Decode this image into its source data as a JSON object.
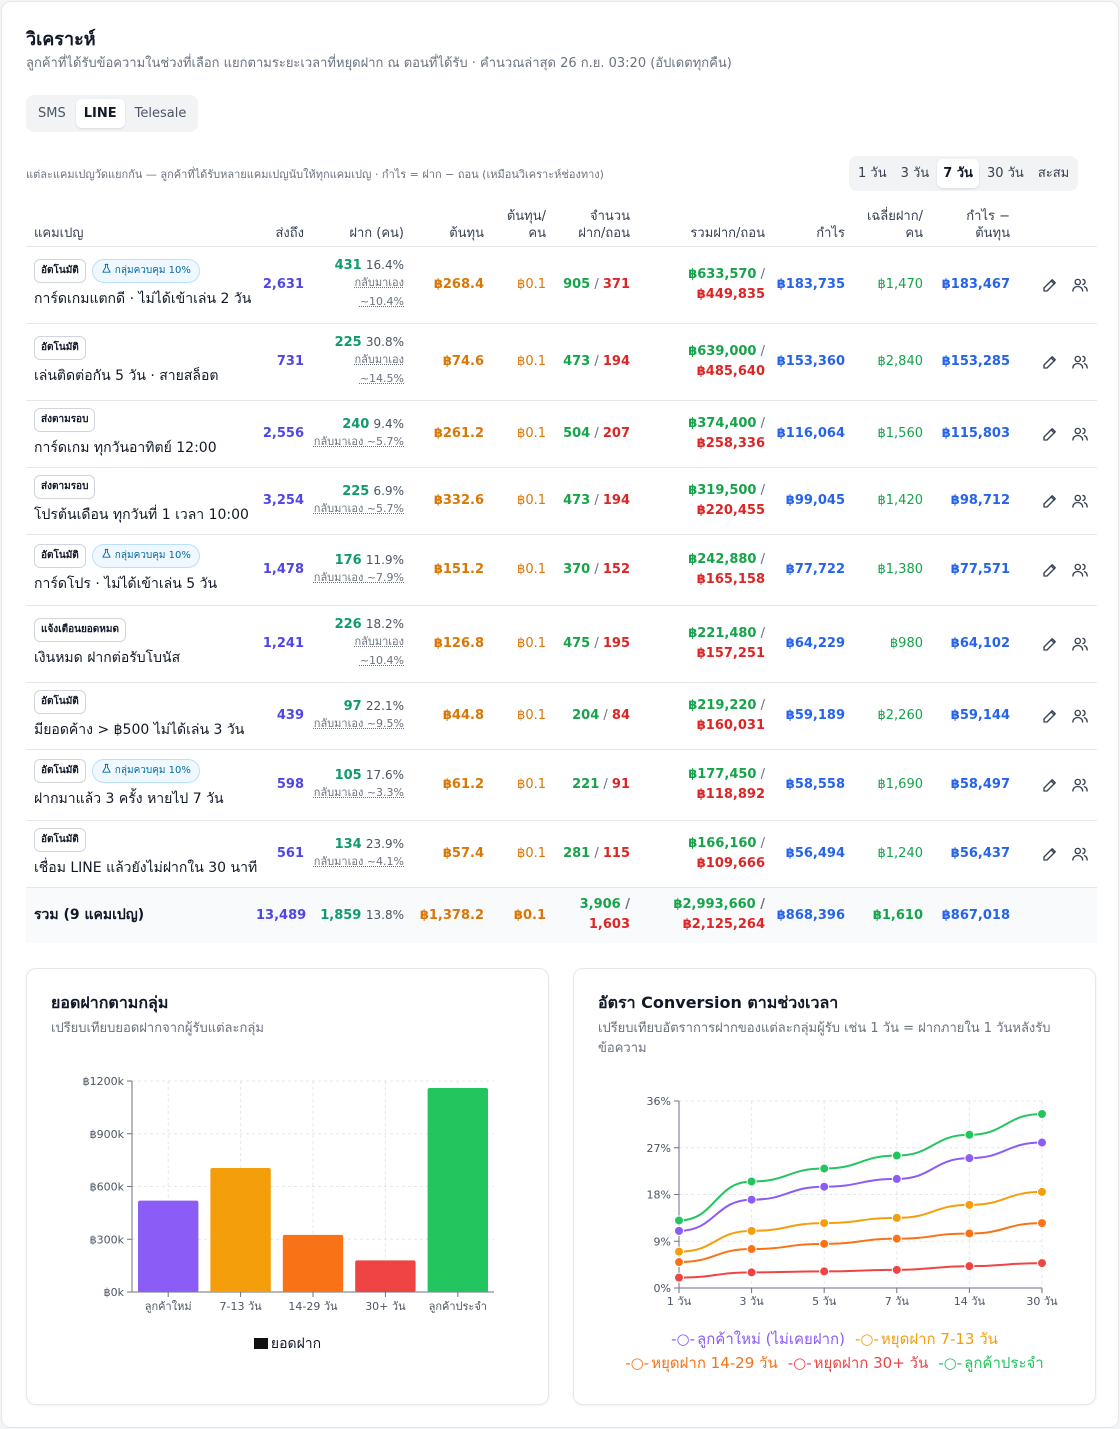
{
  "header": {
    "title": "วิเคราะห์",
    "subtitle": "ลูกค้าที่ได้รับข้อความในช่วงที่เลือก แยกตามระยะเวลาที่หยุดฝาก ณ ตอนที่ได้รับ · คำนวณล่าสุด 26 ก.ย. 03:20 (อัปเดตทุกคืน)"
  },
  "channel_tabs": [
    "SMS",
    "LINE",
    "Telesale"
  ],
  "channel_active": "LINE",
  "note": "แต่ละแคมเปญวัดแยกกัน — ลูกค้าที่ได้รับหลายแคมเปญนับให้ทุกแคมเปญ · กำไร = ฝาก − ถอน (เหมือนวิเคราะห์ช่องทาง)",
  "range_tabs": [
    "1 วัน",
    "3 วัน",
    "7 วัน",
    "30 วัน",
    "สะสม"
  ],
  "range_active": "7 วัน",
  "table": {
    "headers": {
      "campaign": "แคมเปญ",
      "reached": "ส่งถึง",
      "deposit": "ฝาก (คน)",
      "cost": "ต้นทุน",
      "cost_per_1": "ต้นทุน/",
      "cost_per_2": "คน",
      "count_1": "จำนวน",
      "count_2": "ฝาก/ถอน",
      "total": "รวมฝาก/ถอน",
      "profit": "กำไร",
      "avg_1": "เฉลี่ยฝาก/",
      "avg_2": "คน",
      "net_1": "กำไร −",
      "net_2": "ต้นทุน"
    },
    "rows": [
      {
        "badge": "อัตโนมัติ",
        "control": "กลุ่มควบคุม 10%",
        "name": "การ์ดเกมแตกดี · ไม่ได้เข้าเล่น 2 วัน",
        "reached": "2,631",
        "dep": "431",
        "pct": "16.4%",
        "returned": [
          "กลับมาเอง",
          "~10.4%"
        ],
        "cost": "฿268.4",
        "cpp": "฿0.1",
        "cnt_dep": "905",
        "cnt_wd": "371",
        "sum_dep": "฿633,570",
        "sum_wd": "฿449,835",
        "profit": "฿183,735",
        "avg": "฿1,470",
        "net": "฿183,467"
      },
      {
        "badge": "อัตโนมัติ",
        "control": "",
        "name": "เล่นติดต่อกัน 5 วัน · สายสล็อต",
        "reached": "731",
        "dep": "225",
        "pct": "30.8%",
        "returned": [
          "กลับมาเอง",
          "~14.5%"
        ],
        "cost": "฿74.6",
        "cpp": "฿0.1",
        "cnt_dep": "473",
        "cnt_wd": "194",
        "sum_dep": "฿639,000",
        "sum_wd": "฿485,640",
        "profit": "฿153,360",
        "avg": "฿2,840",
        "net": "฿153,285"
      },
      {
        "badge": "ส่งตามรอบ",
        "control": "",
        "name": "การ์ดเกม ทุกวันอาทิตย์ 12:00",
        "reached": "2,556",
        "dep": "240",
        "pct": "9.4%",
        "returned": [
          "กลับมาเอง ~5.7%"
        ],
        "cost": "฿261.2",
        "cpp": "฿0.1",
        "cnt_dep": "504",
        "cnt_wd": "207",
        "sum_dep": "฿374,400",
        "sum_wd": "฿258,336",
        "profit": "฿116,064",
        "avg": "฿1,560",
        "net": "฿115,803"
      },
      {
        "badge": "ส่งตามรอบ",
        "control": "",
        "name": "โปรต้นเดือน ทุกวันที่ 1 เวลา 10:00",
        "reached": "3,254",
        "dep": "225",
        "pct": "6.9%",
        "returned": [
          "กลับมาเอง ~5.7%"
        ],
        "cost": "฿332.6",
        "cpp": "฿0.1",
        "cnt_dep": "473",
        "cnt_wd": "194",
        "sum_dep": "฿319,500",
        "sum_wd": "฿220,455",
        "profit": "฿99,045",
        "avg": "฿1,420",
        "net": "฿98,712"
      },
      {
        "badge": "อัตโนมัติ",
        "control": "กลุ่มควบคุม 10%",
        "name": "การ์ดโปร · ไม่ได้เข้าเล่น 5 วัน",
        "reached": "1,478",
        "dep": "176",
        "pct": "11.9%",
        "returned": [
          "กลับมาเอง ~7.9%"
        ],
        "cost": "฿151.2",
        "cpp": "฿0.1",
        "cnt_dep": "370",
        "cnt_wd": "152",
        "sum_dep": "฿242,880",
        "sum_wd": "฿165,158",
        "profit": "฿77,722",
        "avg": "฿1,380",
        "net": "฿77,571"
      },
      {
        "badge": "แจ้งเตือนยอดหมด",
        "control": "",
        "name": "เงินหมด ฝากต่อรับโบนัส",
        "reached": "1,241",
        "dep": "226",
        "pct": "18.2%",
        "returned": [
          "กลับมาเอง",
          "~10.4%"
        ],
        "cost": "฿126.8",
        "cpp": "฿0.1",
        "cnt_dep": "475",
        "cnt_wd": "195",
        "sum_dep": "฿221,480",
        "sum_wd": "฿157,251",
        "profit": "฿64,229",
        "avg": "฿980",
        "net": "฿64,102"
      },
      {
        "badge": "อัตโนมัติ",
        "control": "",
        "name": "มียอดค้าง > ฿500 ไม่ได้เล่น 3 วัน",
        "reached": "439",
        "dep": "97",
        "pct": "22.1%",
        "returned": [
          "กลับมาเอง ~9.5%"
        ],
        "cost": "฿44.8",
        "cpp": "฿0.1",
        "cnt_dep": "204",
        "cnt_wd": "84",
        "sum_dep": "฿219,220",
        "sum_wd": "฿160,031",
        "profit": "฿59,189",
        "avg": "฿2,260",
        "net": "฿59,144"
      },
      {
        "badge": "อัตโนมัติ",
        "control": "กลุ่มควบคุม 10%",
        "name": "ฝากมาแล้ว 3 ครั้ง หายไป 7 วัน",
        "reached": "598",
        "dep": "105",
        "pct": "17.6%",
        "returned": [
          "กลับมาเอง ~3.3%"
        ],
        "cost": "฿61.2",
        "cpp": "฿0.1",
        "cnt_dep": "221",
        "cnt_wd": "91",
        "sum_dep": "฿177,450",
        "sum_wd": "฿118,892",
        "profit": "฿58,558",
        "avg": "฿1,690",
        "net": "฿58,497"
      },
      {
        "badge": "อัตโนมัติ",
        "control": "",
        "name": "เชื่อม LINE แล้วยังไม่ฝากใน 30 นาที",
        "reached": "561",
        "dep": "134",
        "pct": "23.9%",
        "returned": [
          "กลับมาเอง ~4.1%"
        ],
        "cost": "฿57.4",
        "cpp": "฿0.1",
        "cnt_dep": "281",
        "cnt_wd": "115",
        "sum_dep": "฿166,160",
        "sum_wd": "฿109,666",
        "profit": "฿56,494",
        "avg": "฿1,240",
        "net": "฿56,437"
      }
    ],
    "total": {
      "label": "รวม (9 แคมเปญ)",
      "reached": "13,489",
      "dep": "1,859",
      "pct": "13.8%",
      "cost": "฿1,378.2",
      "cpp": "฿0.1",
      "cnt_dep": "3,906",
      "cnt_wd": "1,603",
      "sum_dep": "฿2,993,660",
      "sum_wd": "฿2,125,264",
      "profit": "฿868,396",
      "avg": "฿1,610",
      "net": "฿867,018"
    }
  },
  "bar_card": {
    "title": "ยอดฝากตามกลุ่ม",
    "desc": "เปรียบเทียบยอดฝากจากผู้รับแต่ละกลุ่ม",
    "legend": "ยอดฝาก"
  },
  "line_card": {
    "title": "อัตรา Conversion ตามช่วงเวลา",
    "desc": "เปรียบเทียบอัตราการฝากของแต่ละกลุ่มผู้รับ เช่น 1 วัน = ฝากภายใน 1 วันหลังรับข้อความ"
  },
  "colors": {
    "purple": "#8b5cf6",
    "amber": "#f59e0b",
    "orange": "#f97316",
    "red": "#ef4444",
    "green": "#22c55e"
  },
  "chart_data": [
    {
      "type": "bar",
      "categories": [
        "ลูกค้าใหม่",
        "7-13 วัน",
        "14-29 วัน",
        "30+ วัน",
        "ลูกค้าประจำ"
      ],
      "series": [
        {
          "name": "ยอดฝาก",
          "values": [
            520000,
            705000,
            325000,
            180000,
            1160000
          ]
        }
      ],
      "bar_colors": [
        "#8b5cf6",
        "#f59e0b",
        "#f97316",
        "#ef4444",
        "#22c55e"
      ],
      "ylim": [
        0,
        1200000
      ],
      "yticks": [
        "฿0k",
        "฿300k",
        "฿600k",
        "฿900k",
        "฿1200k"
      ],
      "grid": true,
      "legend": "bottom"
    },
    {
      "type": "line",
      "x": [
        "1 วัน",
        "3 วัน",
        "5 วัน",
        "7 วัน",
        "14 วัน",
        "30 วัน"
      ],
      "series": [
        {
          "name": "ลูกค้าใหม่ (ไม่เคยฝาก)",
          "color": "#8b5cf6",
          "values": [
            11,
            17,
            19.5,
            21,
            25,
            28
          ]
        },
        {
          "name": "หยุดฝาก 7-13 วัน",
          "color": "#f59e0b",
          "values": [
            7,
            11,
            12.5,
            13.5,
            16,
            18.5
          ]
        },
        {
          "name": "หยุดฝาก 14-29 วัน",
          "color": "#f97316",
          "values": [
            5,
            7.5,
            8.5,
            9.5,
            10.5,
            12.5
          ]
        },
        {
          "name": "หยุดฝาก 30+ วัน",
          "color": "#ef4444",
          "values": [
            2,
            3,
            3.2,
            3.5,
            4.2,
            4.8
          ]
        },
        {
          "name": "ลูกค้าประจำ",
          "color": "#22c55e",
          "values": [
            13,
            20.5,
            23,
            25.5,
            29.5,
            33.5
          ]
        }
      ],
      "ylim": [
        0,
        36
      ],
      "yticks": [
        "0%",
        "9%",
        "18%",
        "27%",
        "36%"
      ],
      "grid": true,
      "legend": "bottom"
    }
  ]
}
